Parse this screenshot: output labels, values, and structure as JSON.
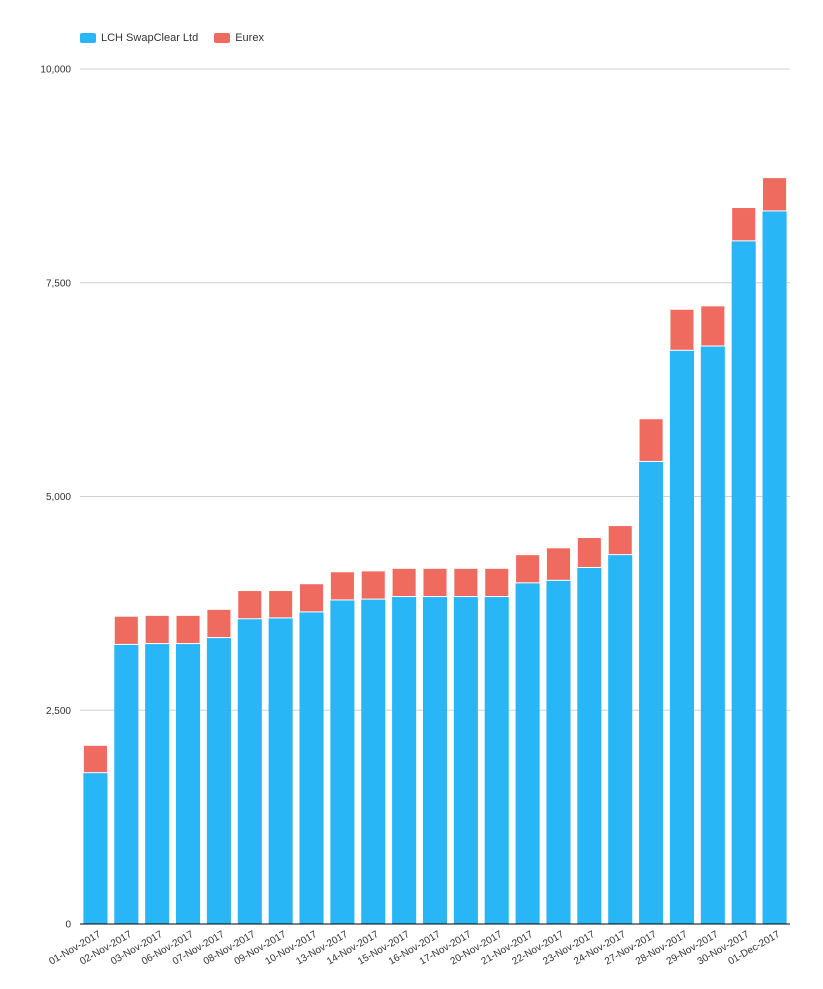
{
  "colors": {
    "lch": "#29b6f6",
    "eurex": "#f06b5f",
    "grid": "#d0d0d0",
    "axis": "#000000",
    "text": "#333333"
  },
  "chart_data": {
    "type": "bar",
    "stacked": true,
    "legend_position": "top-left",
    "grid": true,
    "title": "",
    "xlabel": "",
    "ylabel": "",
    "ylim": [
      0,
      10000
    ],
    "yticks": [
      0,
      2500,
      5000,
      7500,
      10000
    ],
    "ytick_labels": [
      "0",
      "2,500",
      "5,000",
      "7,500",
      "10,000"
    ],
    "categories": [
      "01-Nov-2017",
      "02-Nov-2017",
      "03-Nov-2017",
      "06-Nov-2017",
      "07-Nov-2017",
      "08-Nov-2017",
      "09-Nov-2017",
      "10-Nov-2017",
      "13-Nov-2017",
      "14-Nov-2017",
      "15-Nov-2017",
      "16-Nov-2017",
      "17-Nov-2017",
      "20-Nov-2017",
      "21-Nov-2017",
      "22-Nov-2017",
      "23-Nov-2017",
      "24-Nov-2017",
      "27-Nov-2017",
      "28-Nov-2017",
      "29-Nov-2017",
      "30-Nov-2017",
      "01-Dec-2017"
    ],
    "series": [
      {
        "name": "LCH SwapClear Ltd",
        "color_key": "lch",
        "values": [
          1770,
          3270,
          3280,
          3280,
          3350,
          3570,
          3580,
          3650,
          3790,
          3800,
          3830,
          3830,
          3830,
          3830,
          3990,
          4020,
          4170,
          4320,
          5410,
          6710,
          6760,
          7990,
          8340
        ]
      },
      {
        "name": "Eurex",
        "color_key": "eurex",
        "values": [
          320,
          330,
          330,
          330,
          330,
          330,
          320,
          330,
          330,
          330,
          330,
          330,
          330,
          330,
          330,
          380,
          350,
          340,
          500,
          480,
          470,
          390,
          390
        ]
      }
    ]
  }
}
